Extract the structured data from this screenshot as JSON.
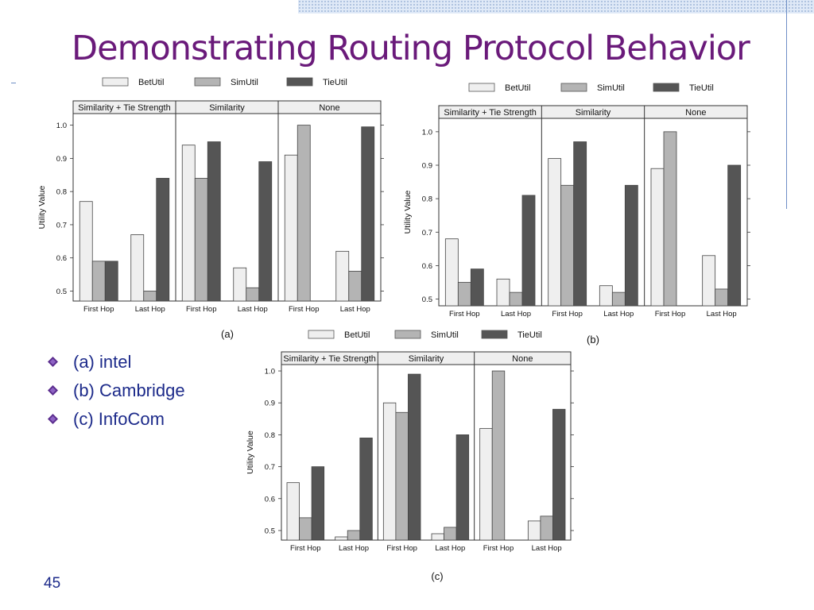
{
  "slide": {
    "title": "Demonstrating Routing Protocol Behavior",
    "bullets": [
      "(a) intel",
      "(b) Cambridge",
      "(c) InfoCom"
    ],
    "page_number": "45"
  },
  "colors": {
    "title": "#6a1a7a",
    "bullet_text": "#1c2a8a",
    "BetUtil": "#efefef",
    "SimUtil": "#b4b4b4",
    "TieUtil": "#555555"
  },
  "chart_data": [
    {
      "type": "bar",
      "caption": "(a)",
      "panels": [
        "Similarity + Tie Strength",
        "Similarity",
        "None"
      ],
      "categories": [
        "First Hop",
        "Last Hop"
      ],
      "ylabel": "Utility Value",
      "ylim": [
        0.47,
        1.035
      ],
      "yticks": [
        "0.5",
        "0.6",
        "0.7",
        "0.8",
        "0.9",
        "1.0"
      ],
      "legend": "top",
      "series": [
        {
          "name": "BetUtil",
          "values": [
            [
              0.77,
              0.67
            ],
            [
              0.94,
              0.57
            ],
            [
              0.91,
              0.62
            ]
          ]
        },
        {
          "name": "SimUtil",
          "values": [
            [
              0.59,
              0.5
            ],
            [
              0.84,
              0.51
            ],
            [
              1.0,
              0.56
            ]
          ]
        },
        {
          "name": "TieUtil",
          "values": [
            [
              0.59,
              0.84
            ],
            [
              0.95,
              0.89
            ],
            [
              null,
              0.995
            ]
          ]
        }
      ]
    },
    {
      "type": "bar",
      "caption": "(b)",
      "panels": [
        "Similarity + Tie Strength",
        "Similarity",
        "None"
      ],
      "categories": [
        "First Hop",
        "Last Hop"
      ],
      "ylabel": "Utility Value",
      "ylim": [
        0.48,
        1.04
      ],
      "yticks": [
        "0.5",
        "0.6",
        "0.7",
        "0.8",
        "0.9",
        "1.0"
      ],
      "legend": "top",
      "series": [
        {
          "name": "BetUtil",
          "values": [
            [
              0.68,
              0.56
            ],
            [
              0.92,
              0.54
            ],
            [
              0.89,
              0.63
            ]
          ]
        },
        {
          "name": "SimUtil",
          "values": [
            [
              0.55,
              0.52
            ],
            [
              0.84,
              0.52
            ],
            [
              1.0,
              0.53
            ]
          ]
        },
        {
          "name": "TieUtil",
          "values": [
            [
              0.59,
              0.81
            ],
            [
              0.97,
              0.84
            ],
            [
              null,
              0.9
            ]
          ]
        }
      ]
    },
    {
      "type": "bar",
      "caption": "(c)",
      "panels": [
        "Similarity + Tie Strength",
        "Similarity",
        "None"
      ],
      "categories": [
        "First Hop",
        "Last Hop"
      ],
      "ylabel": "Utility Value",
      "ylim": [
        0.47,
        1.02
      ],
      "yticks": [
        "0.5",
        "0.6",
        "0.7",
        "0.8",
        "0.9",
        "1.0"
      ],
      "legend": "top",
      "series": [
        {
          "name": "BetUtil",
          "values": [
            [
              0.65,
              0.48
            ],
            [
              0.9,
              0.49
            ],
            [
              0.82,
              0.53
            ]
          ]
        },
        {
          "name": "SimUtil",
          "values": [
            [
              0.54,
              0.5
            ],
            [
              0.87,
              0.51
            ],
            [
              1.0,
              0.545
            ]
          ]
        },
        {
          "name": "TieUtil",
          "values": [
            [
              0.7,
              0.79
            ],
            [
              0.99,
              0.8
            ],
            [
              null,
              0.88
            ]
          ]
        }
      ]
    }
  ]
}
